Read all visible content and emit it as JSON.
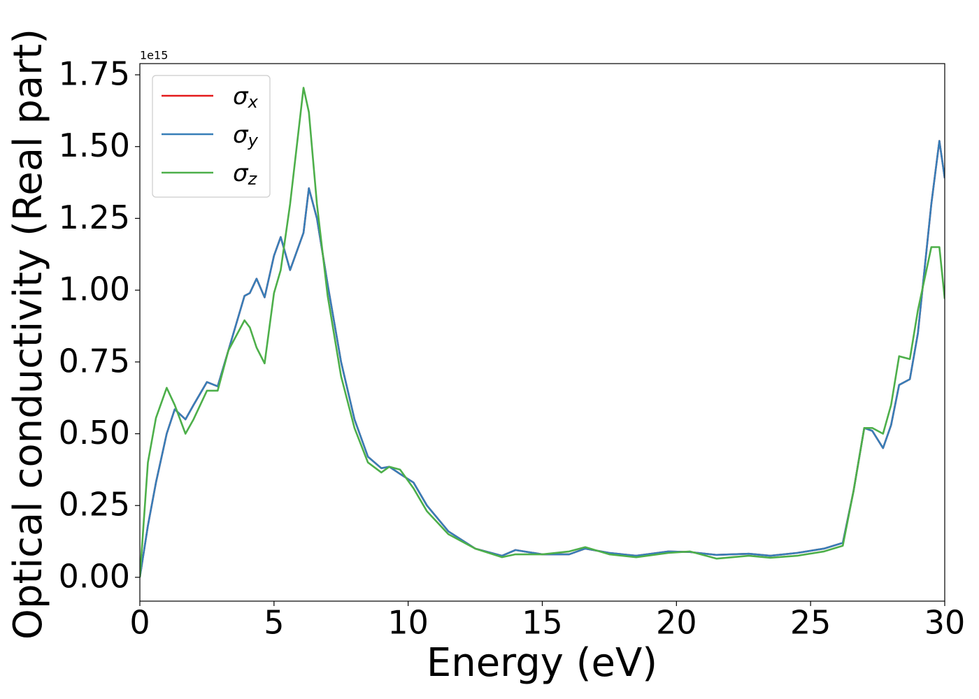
{
  "chart_data": {
    "type": "line",
    "xlabel": "Energy (eV)",
    "ylabel": "Optical conductivity (Real part)",
    "offset_text": "1e15",
    "xlim": [
      0,
      30
    ],
    "ylim": [
      -0.083,
      1.789
    ],
    "xticks": [
      0,
      5,
      10,
      15,
      20,
      25,
      30
    ],
    "yticks": [
      {
        "value": 0,
        "label": "0.00"
      },
      {
        "value": 0.25,
        "label": "0.25"
      },
      {
        "value": 0.5,
        "label": "0.50"
      },
      {
        "value": 0.75,
        "label": "0.75"
      },
      {
        "value": 1,
        "label": "1.00"
      },
      {
        "value": 1.25,
        "label": "1.25"
      },
      {
        "value": 1.5,
        "label": "1.50"
      },
      {
        "value": 1.75,
        "label": "1.75"
      }
    ],
    "grid": false,
    "legend": "upper left",
    "x": [
      0,
      0.3,
      0.6,
      1.0,
      1.3,
      1.7,
      2.0,
      2.5,
      2.9,
      3.3,
      3.9,
      4.1,
      4.35,
      4.65,
      5.0,
      5.25,
      5.6,
      6.1,
      6.3,
      6.6,
      7.0,
      7.5,
      8.0,
      8.5,
      9.0,
      9.3,
      9.7,
      10.2,
      10.7,
      11.5,
      12.5,
      13.5,
      14.0,
      15.0,
      16.0,
      16.6,
      17.5,
      18.5,
      19.7,
      20.5,
      21.5,
      22.7,
      23.5,
      24.5,
      25.5,
      26.2,
      26.6,
      27.0,
      27.3,
      27.7,
      28.0,
      28.3,
      28.7,
      29.0,
      29.5,
      29.8,
      30.0
    ],
    "series": [
      {
        "name": "σx",
        "color": "#e41a1c",
        "values": [
          0,
          0.18,
          0.33,
          0.5,
          0.585,
          0.55,
          0.6,
          0.68,
          0.665,
          0.79,
          0.98,
          0.99,
          1.04,
          0.975,
          1.12,
          1.185,
          1.07,
          1.2,
          1.355,
          1.25,
          1.02,
          0.75,
          0.55,
          0.42,
          0.38,
          0.385,
          0.36,
          0.33,
          0.25,
          0.16,
          0.1,
          0.075,
          0.095,
          0.08,
          0.08,
          0.1,
          0.085,
          0.075,
          0.09,
          0.088,
          0.078,
          0.082,
          0.075,
          0.085,
          0.1,
          0.12,
          0.3,
          0.52,
          0.51,
          0.45,
          0.53,
          0.67,
          0.69,
          0.85,
          1.3,
          1.52,
          1.39
        ]
      },
      {
        "name": "σy",
        "color": "#377eb8",
        "values": [
          0,
          0.18,
          0.33,
          0.5,
          0.585,
          0.55,
          0.6,
          0.68,
          0.665,
          0.79,
          0.98,
          0.99,
          1.04,
          0.975,
          1.12,
          1.185,
          1.07,
          1.2,
          1.355,
          1.25,
          1.02,
          0.75,
          0.55,
          0.42,
          0.38,
          0.385,
          0.36,
          0.33,
          0.25,
          0.16,
          0.1,
          0.075,
          0.095,
          0.08,
          0.08,
          0.1,
          0.085,
          0.075,
          0.09,
          0.088,
          0.078,
          0.082,
          0.075,
          0.085,
          0.1,
          0.12,
          0.3,
          0.52,
          0.51,
          0.45,
          0.53,
          0.67,
          0.69,
          0.85,
          1.3,
          1.52,
          1.39
        ]
      },
      {
        "name": "σz",
        "color": "#4daf4a",
        "values": [
          0,
          0.4,
          0.555,
          0.66,
          0.6,
          0.5,
          0.55,
          0.65,
          0.65,
          0.79,
          0.895,
          0.87,
          0.8,
          0.745,
          0.99,
          1.07,
          1.3,
          1.705,
          1.62,
          1.3,
          0.98,
          0.7,
          0.52,
          0.4,
          0.365,
          0.385,
          0.375,
          0.31,
          0.23,
          0.15,
          0.1,
          0.07,
          0.08,
          0.08,
          0.09,
          0.105,
          0.08,
          0.07,
          0.085,
          0.09,
          0.065,
          0.075,
          0.068,
          0.075,
          0.09,
          0.11,
          0.3,
          0.52,
          0.52,
          0.5,
          0.6,
          0.77,
          0.76,
          0.93,
          1.15,
          1.15,
          0.97
        ]
      }
    ]
  }
}
